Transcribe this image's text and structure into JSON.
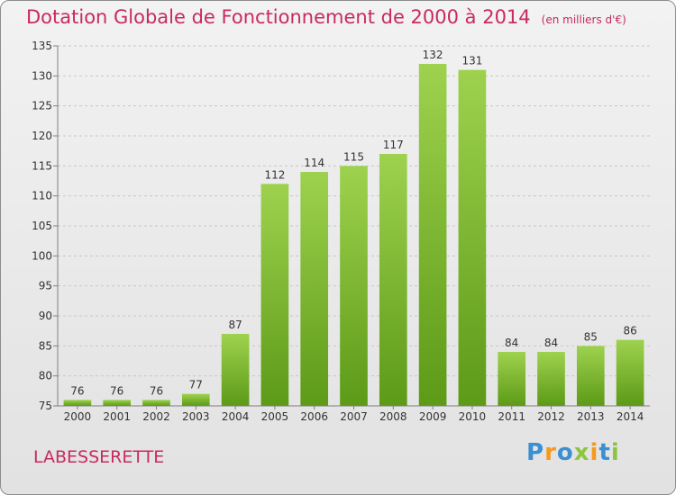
{
  "header": {
    "title": "Dotation Globale de Fonctionnement de 2000 à 2014",
    "subtitle": "(en milliers d'€)"
  },
  "footer": {
    "place": "LABESSERETTE",
    "logo": {
      "p": "P",
      "r": "r",
      "o": "o",
      "x": "x",
      "i": "i",
      "t": "t",
      "i2": "i"
    }
  },
  "colors": {
    "title": "#c82a60",
    "bar_top": "#9ed24e",
    "bar_bottom": "#5c9a17",
    "grid": "#c8c8c8",
    "axis": "#808080",
    "tick_text": "#333333"
  },
  "chart_data": {
    "type": "bar",
    "categories": [
      "2000",
      "2001",
      "2002",
      "2003",
      "2004",
      "2005",
      "2006",
      "2007",
      "2008",
      "2009",
      "2010",
      "2011",
      "2012",
      "2013",
      "2014"
    ],
    "values": [
      76,
      76,
      76,
      77,
      87,
      112,
      114,
      115,
      117,
      132,
      131,
      84,
      84,
      85,
      86
    ],
    "ylim": [
      75,
      135
    ],
    "yticks": [
      75,
      80,
      85,
      90,
      95,
      100,
      105,
      110,
      115,
      120,
      125,
      130,
      135
    ],
    "grid": true,
    "legend": "none"
  }
}
